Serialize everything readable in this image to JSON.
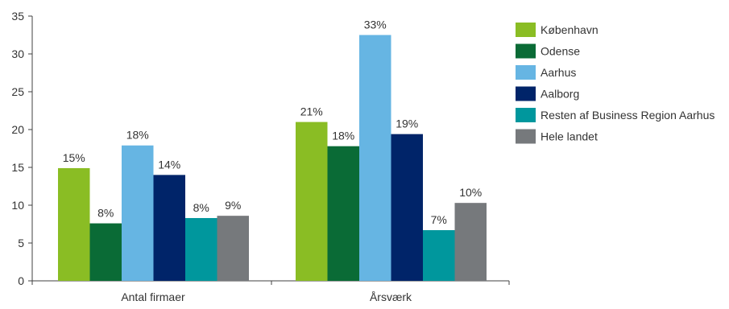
{
  "chart_data": {
    "type": "bar",
    "categories": [
      "Antal firmaer",
      "Årsværk"
    ],
    "series": [
      {
        "name": "København",
        "values": [
          14.9,
          21.0
        ],
        "labels": [
          "15%",
          "21%"
        ],
        "color": "#8ABD24"
      },
      {
        "name": "Odense",
        "values": [
          7.6,
          17.8
        ],
        "labels": [
          "8%",
          "18%"
        ],
        "color": "#0A6B36"
      },
      {
        "name": "Aarhus",
        "values": [
          17.9,
          32.5
        ],
        "labels": [
          "18%",
          "33%"
        ],
        "color": "#66B5E3"
      },
      {
        "name": "Aalborg",
        "values": [
          14.0,
          19.4
        ],
        "labels": [
          "14%",
          "19%"
        ],
        "color": "#002469"
      },
      {
        "name": "Resten af Business Region Aarhus",
        "values": [
          8.3,
          6.7
        ],
        "labels": [
          "8%",
          "7%"
        ],
        "color": "#00979D"
      },
      {
        "name": "Hele landet",
        "values": [
          8.6,
          10.3
        ],
        "labels": [
          "9%",
          "10%"
        ],
        "color": "#76797C"
      }
    ],
    "ylim": [
      0,
      35
    ],
    "yticks": [
      "0",
      "5",
      "10",
      "15",
      "20",
      "25",
      "30",
      "35"
    ],
    "title": "",
    "xlabel": "",
    "ylabel": "",
    "grid": false,
    "legend_position": "right"
  }
}
